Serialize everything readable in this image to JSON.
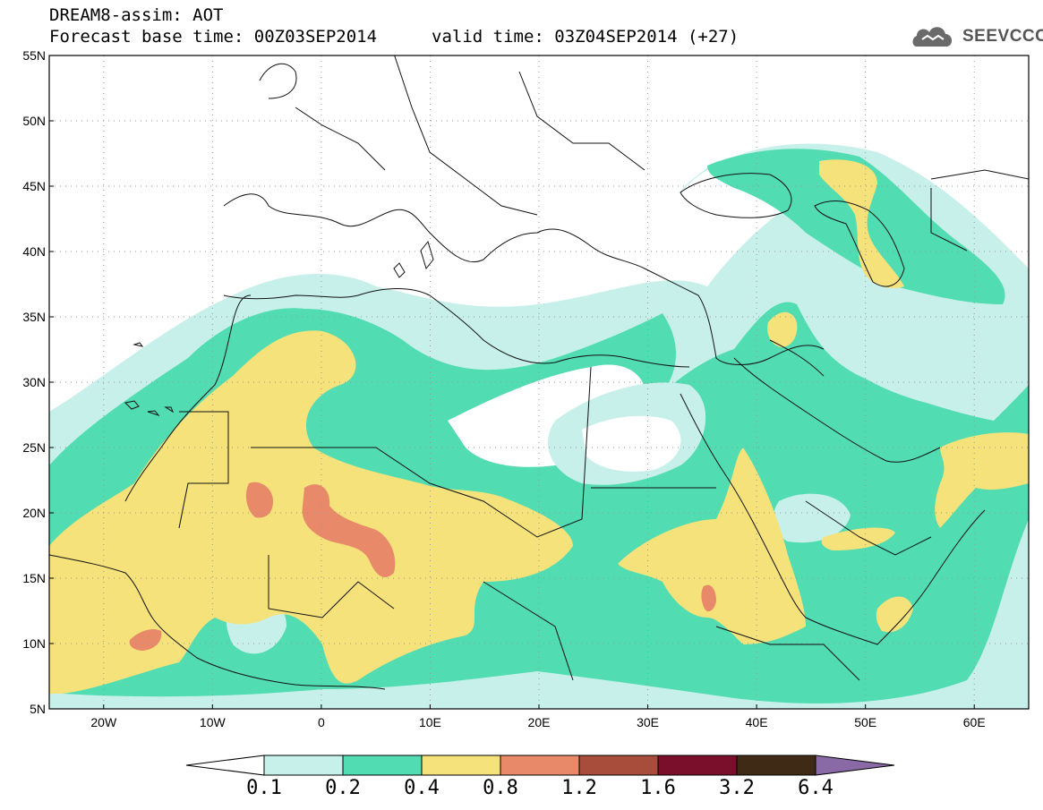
{
  "header": {
    "title": "DREAM8-assim: AOT",
    "base_time": "Forecast base time: 00Z03SEP2014",
    "valid_time": "valid time: 03Z04SEP2014 (+27)"
  },
  "logo": {
    "text": "SEEVCCC",
    "icon": "cloud-icon",
    "color": "#6a6a6a"
  },
  "map": {
    "lat_labels": [
      "55N",
      "50N",
      "45N",
      "40N",
      "35N",
      "30N",
      "25N",
      "20N",
      "15N",
      "10N",
      "5N"
    ],
    "lon_labels": [
      "20W",
      "10W",
      "0",
      "10E",
      "20E",
      "30E",
      "40E",
      "50E",
      "60E"
    ],
    "lat_range": [
      5,
      55
    ],
    "lon_range": [
      -25,
      65
    ],
    "grid": "dotted"
  },
  "colorbar": {
    "labels": [
      "0.1",
      "0.2",
      "0.4",
      "0.8",
      "1.2",
      "1.6",
      "3.2",
      "6.4"
    ],
    "colors": [
      "#c8f0ea",
      "#52dcb2",
      "#f5e27a",
      "#e8896a",
      "#a84c3c",
      "#7a0f2c",
      "#3f2a16",
      "#8a6aa6"
    ]
  }
}
